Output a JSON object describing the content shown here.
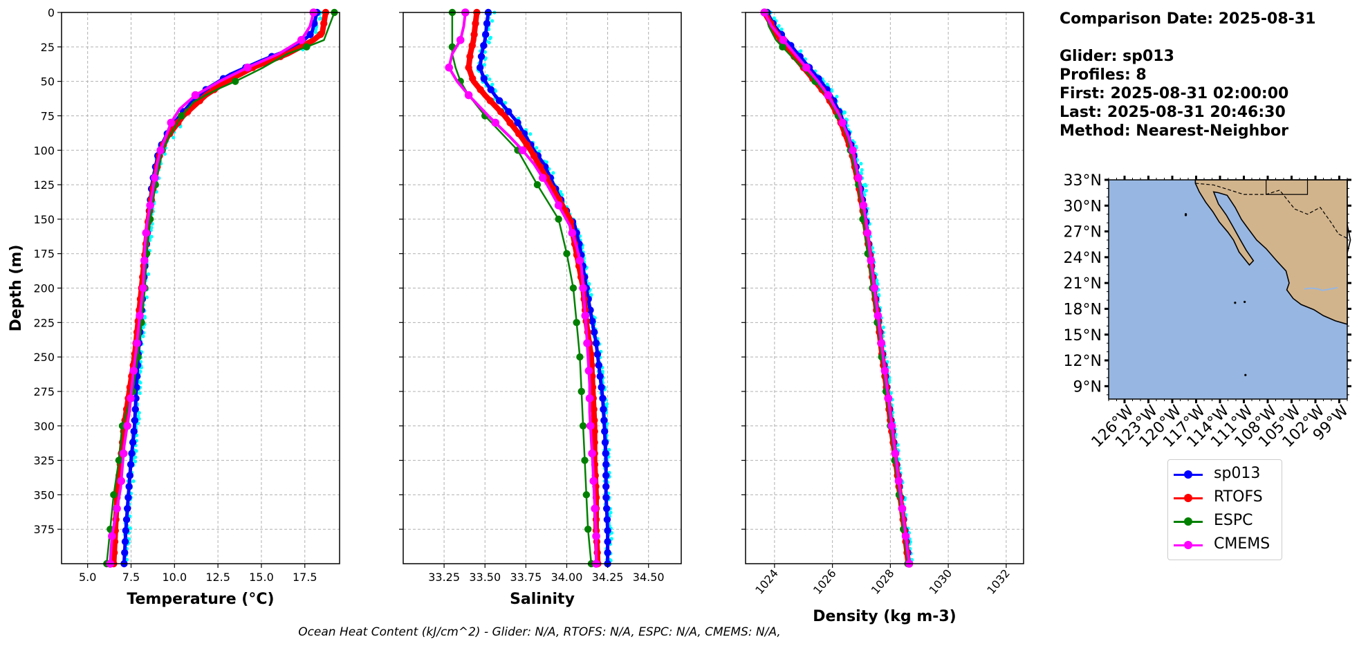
{
  "colors": {
    "sp013": "#0000ff",
    "glider_raw": "#00ffff",
    "rtofs": "#ff0000",
    "espc": "#008000",
    "cmems": "#ff00ff",
    "ocean": "#97b6e1",
    "land": "#d2b48c",
    "grid": "#b0b0b0"
  },
  "info": {
    "title": "Comparison Date: 2025-08-31",
    "glider": "Glider: sp013",
    "profiles": "Profiles: 8",
    "first": "First: 2025-08-31 02:00:00",
    "last": "Last: 2025-08-31 20:46:30",
    "method": "Method: Nearest-Neighbor"
  },
  "footer": "Ocean Heat Content (kJ/cm^2) - Glider: N/A,  RTOFS: N/A,  ESPC: N/A,  CMEMS: N/A,",
  "legend": [
    {
      "key": "sp013",
      "label": "sp013"
    },
    {
      "key": "rtofs",
      "label": "RTOFS"
    },
    {
      "key": "espc",
      "label": "ESPC"
    },
    {
      "key": "cmems",
      "label": "CMEMS"
    }
  ],
  "chart_data": [
    {
      "type": "line",
      "panel": "temperature",
      "xlabel": "Temperature (°C)",
      "ylabel": "Depth (m)",
      "xlim": [
        3.5,
        19.5
      ],
      "ylim": [
        400,
        0
      ],
      "xticks": [
        "5.0",
        "7.5",
        "10.0",
        "12.5",
        "15.0",
        "17.5"
      ],
      "yticks": [
        "0",
        "25",
        "50",
        "75",
        "100",
        "125",
        "150",
        "175",
        "200",
        "225",
        "250",
        "275",
        "300",
        "325",
        "350",
        "375"
      ],
      "grid": true,
      "series": [
        {
          "name": "sp013",
          "key": "sp013",
          "depth": [
            0,
            15,
            25,
            35,
            45,
            55,
            65,
            75,
            85,
            100,
            125,
            150,
            175,
            200,
            225,
            250,
            275,
            300,
            325,
            350,
            375,
            400
          ],
          "values": [
            18.2,
            17.9,
            17.0,
            15.0,
            13.2,
            11.9,
            11.0,
            10.3,
            9.7,
            9.1,
            8.7,
            8.5,
            8.35,
            8.2,
            8.05,
            7.9,
            7.8,
            7.7,
            7.5,
            7.35,
            7.2,
            7.1
          ]
        },
        {
          "name": "RTOFS",
          "key": "rtofs",
          "depth": [
            0,
            15,
            20,
            30,
            40,
            50,
            60,
            75,
            90,
            100,
            125,
            150,
            175,
            200,
            225,
            250,
            275,
            300,
            325,
            350,
            375,
            400
          ],
          "values": [
            18.7,
            18.5,
            18.0,
            16.5,
            14.5,
            13.0,
            11.8,
            10.5,
            9.6,
            9.2,
            8.8,
            8.5,
            8.3,
            8.1,
            7.9,
            7.7,
            7.4,
            7.1,
            6.9,
            6.7,
            6.6,
            6.5
          ]
        },
        {
          "name": "ESPC",
          "key": "espc",
          "depth": [
            0,
            10,
            20,
            25,
            30,
            35,
            40,
            45,
            50,
            55,
            60,
            65,
            75,
            90,
            100,
            125,
            150,
            175,
            200,
            225,
            250,
            275,
            300,
            325,
            350,
            375,
            400
          ],
          "values": [
            19.2,
            18.9,
            18.6,
            17.6,
            16.5,
            15.8,
            15.1,
            14.3,
            13.5,
            12.6,
            11.8,
            11.1,
            10.4,
            9.7,
            9.3,
            8.9,
            8.6,
            8.4,
            8.3,
            8.1,
            7.9,
            7.6,
            7.0,
            6.8,
            6.5,
            6.3,
            6.1
          ]
        },
        {
          "name": "CMEMS",
          "key": "cmems",
          "depth": [
            0,
            10,
            20,
            30,
            40,
            50,
            60,
            70,
            80,
            90,
            100,
            110,
            125,
            140,
            155,
            170,
            185,
            200,
            220,
            245,
            265,
            290,
            315,
            345,
            380,
            400
          ],
          "values": [
            18.0,
            17.8,
            17.3,
            16.0,
            14.2,
            12.6,
            11.2,
            10.3,
            9.8,
            9.5,
            9.2,
            9.0,
            8.8,
            8.6,
            8.4,
            8.3,
            8.25,
            8.2,
            8.0,
            7.8,
            7.6,
            7.4,
            7.1,
            6.9,
            6.4,
            6.3
          ]
        }
      ]
    },
    {
      "type": "line",
      "panel": "salinity",
      "xlabel": "Salinity",
      "xlim": [
        33.0,
        34.7
      ],
      "ylim": [
        400,
        0
      ],
      "xticks": [
        "33.25",
        "33.50",
        "33.75",
        "34.00",
        "34.25",
        "34.50"
      ],
      "grid": true,
      "series": [
        {
          "name": "sp013",
          "key": "sp013",
          "depth": [
            0,
            10,
            20,
            30,
            40,
            50,
            60,
            70,
            80,
            90,
            100,
            110,
            125,
            140,
            155,
            170,
            185,
            200,
            220,
            240,
            260,
            280,
            300,
            325,
            350,
            375,
            400
          ],
          "values": [
            33.52,
            33.51,
            33.5,
            33.48,
            33.47,
            33.5,
            33.56,
            33.63,
            33.7,
            33.75,
            33.8,
            33.86,
            33.92,
            33.98,
            34.05,
            34.08,
            34.1,
            34.12,
            34.15,
            34.18,
            34.2,
            34.22,
            34.23,
            34.24,
            34.24,
            34.25,
            34.25
          ]
        },
        {
          "name": "RTOFS",
          "key": "rtofs",
          "depth": [
            0,
            10,
            20,
            30,
            40,
            50,
            60,
            75,
            90,
            100,
            125,
            150,
            175,
            200,
            225,
            250,
            275,
            300,
            325,
            350,
            375,
            400
          ],
          "values": [
            33.45,
            33.44,
            33.43,
            33.41,
            33.4,
            33.43,
            33.5,
            33.62,
            33.72,
            33.78,
            33.9,
            34.02,
            34.06,
            34.1,
            34.12,
            34.15,
            34.16,
            34.17,
            34.17,
            34.18,
            34.18,
            34.19
          ]
        },
        {
          "name": "ESPC",
          "key": "espc",
          "depth": [
            0,
            10,
            20,
            30,
            40,
            50,
            60,
            75,
            90,
            100,
            125,
            150,
            175,
            200,
            225,
            250,
            275,
            300,
            325,
            350,
            375,
            400
          ],
          "values": [
            33.3,
            33.3,
            33.3,
            33.3,
            33.32,
            33.35,
            33.4,
            33.5,
            33.62,
            33.7,
            33.82,
            33.95,
            34.0,
            34.04,
            34.06,
            34.08,
            34.09,
            34.1,
            34.11,
            34.12,
            34.13,
            34.15
          ]
        },
        {
          "name": "CMEMS",
          "key": "cmems",
          "depth": [
            0,
            10,
            20,
            30,
            40,
            50,
            60,
            75,
            90,
            100,
            110,
            125,
            140,
            155,
            170,
            185,
            200,
            215,
            230,
            250,
            270,
            290,
            310,
            330,
            355,
            380,
            400
          ],
          "values": [
            33.38,
            33.37,
            33.35,
            33.3,
            33.28,
            33.33,
            33.4,
            33.52,
            33.65,
            33.73,
            33.8,
            33.88,
            33.95,
            34.02,
            34.06,
            34.09,
            34.1,
            34.11,
            34.12,
            34.13,
            34.14,
            34.14,
            34.15,
            34.16,
            34.17,
            34.18,
            34.18
          ]
        }
      ]
    },
    {
      "type": "line",
      "panel": "density",
      "xlabel": "Density (kg m-3)",
      "xlim": [
        1023.0,
        1032.6
      ],
      "ylim": [
        400,
        0
      ],
      "xticks": [
        "1024",
        "1026",
        "1028",
        "1030",
        "1032"
      ],
      "grid": true,
      "series": [
        {
          "name": "sp013",
          "key": "sp013",
          "depth": [
            0,
            10,
            20,
            30,
            40,
            50,
            60,
            75,
            90,
            100,
            125,
            150,
            175,
            200,
            225,
            250,
            275,
            300,
            325,
            350,
            375,
            400
          ],
          "values": [
            1023.75,
            1024.0,
            1024.4,
            1024.8,
            1025.2,
            1025.6,
            1025.95,
            1026.3,
            1026.55,
            1026.7,
            1026.95,
            1027.15,
            1027.3,
            1027.45,
            1027.6,
            1027.75,
            1027.9,
            1028.05,
            1028.2,
            1028.35,
            1028.5,
            1028.65
          ]
        },
        {
          "name": "RTOFS",
          "key": "rtofs",
          "depth": [
            0,
            20,
            40,
            60,
            75,
            100,
            125,
            150,
            175,
            200,
            225,
            250,
            275,
            300,
            325,
            350,
            375,
            400
          ],
          "values": [
            1023.65,
            1024.2,
            1025.0,
            1025.8,
            1026.2,
            1026.65,
            1026.9,
            1027.1,
            1027.28,
            1027.42,
            1027.58,
            1027.72,
            1027.88,
            1028.02,
            1028.18,
            1028.33,
            1028.48,
            1028.62
          ]
        },
        {
          "name": "ESPC",
          "key": "espc",
          "depth": [
            0,
            10,
            20,
            30,
            40,
            50,
            60,
            75,
            90,
            100,
            125,
            150,
            175,
            200,
            225,
            250,
            275,
            300,
            325,
            350,
            375,
            400
          ],
          "values": [
            1023.7,
            1023.8,
            1024.05,
            1024.5,
            1024.95,
            1025.4,
            1025.8,
            1026.2,
            1026.5,
            1026.62,
            1026.9,
            1027.05,
            1027.22,
            1027.38,
            1027.55,
            1027.7,
            1027.85,
            1028.0,
            1028.15,
            1028.3,
            1028.45,
            1028.6
          ]
        },
        {
          "name": "CMEMS",
          "key": "cmems",
          "depth": [
            0,
            10,
            20,
            30,
            40,
            50,
            60,
            75,
            90,
            100,
            125,
            150,
            175,
            200,
            225,
            250,
            275,
            300,
            325,
            350,
            375,
            400
          ],
          "values": [
            1023.65,
            1023.9,
            1024.3,
            1024.7,
            1025.1,
            1025.5,
            1025.85,
            1026.25,
            1026.55,
            1026.7,
            1026.95,
            1027.15,
            1027.3,
            1027.45,
            1027.6,
            1027.75,
            1027.9,
            1028.05,
            1028.2,
            1028.35,
            1028.5,
            1028.65
          ]
        }
      ]
    },
    {
      "type": "map",
      "panel": "location-map",
      "lon_range": [
        -128,
        -98
      ],
      "lat_range": [
        7.5,
        33
      ],
      "lat_ticks": [
        "33°N",
        "30°N",
        "27°N",
        "24°N",
        "21°N",
        "18°N",
        "15°N",
        "12°N",
        "9°N"
      ],
      "lon_ticks": [
        "126°W",
        "123°W",
        "120°W",
        "117°W",
        "114°W",
        "111°W",
        "108°W",
        "105°W",
        "102°W",
        "99°W"
      ]
    }
  ]
}
